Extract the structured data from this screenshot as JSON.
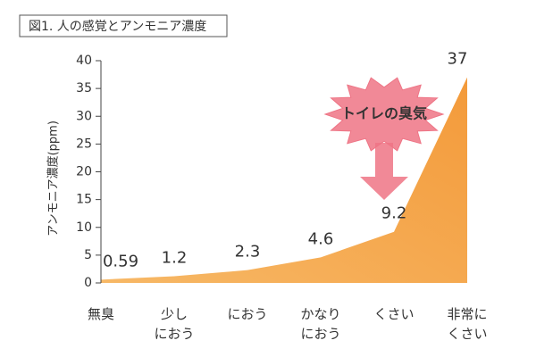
{
  "chart_data": {
    "type": "area",
    "title": "図1. 人の感覚とアンモニア濃度",
    "y_label": "アンモニア濃度(ppm)",
    "categories": [
      "無臭",
      "少し\nにおう",
      "におう",
      "かなり\nにおう",
      "くさい",
      "非常に\nくさい"
    ],
    "category_colors": [
      "#333333",
      "#333333",
      "#333333",
      "#333333",
      "#d8261c",
      "#d8261c"
    ],
    "values": [
      0.59,
      1.2,
      2.3,
      4.6,
      9.2,
      37
    ],
    "color": "#f39a3a",
    "ylim": [
      0,
      40
    ],
    "yticks": [
      0,
      5,
      10,
      15,
      20,
      25,
      30,
      35,
      40
    ],
    "annotation": "トイレの臭気",
    "annotation_color": "#ee7485"
  }
}
